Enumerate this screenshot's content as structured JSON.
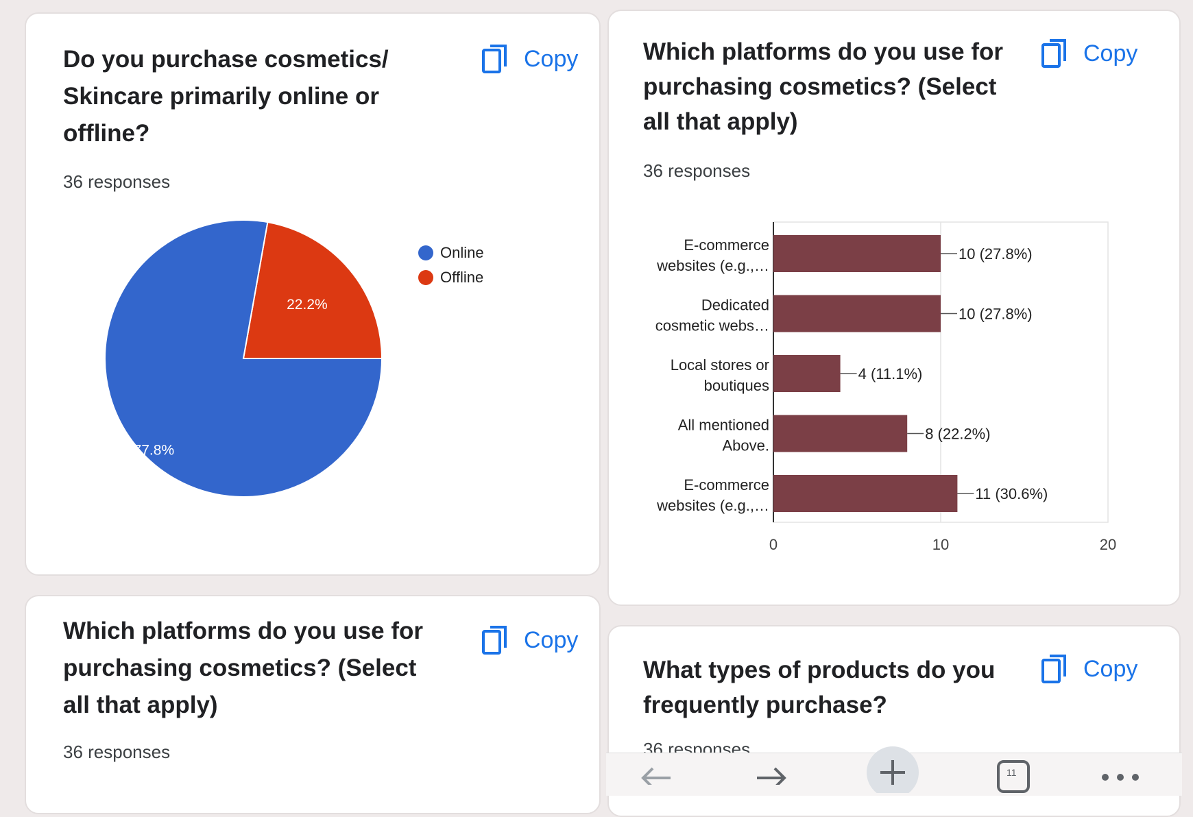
{
  "copy_label": "Copy",
  "cards": [
    {
      "question": "Do you purchase cosmetics/ Skincare primarily online or offline?",
      "title_lines": [
        "Do you purchase cosmetics/",
        "Skincare primarily online or",
        "offline?"
      ],
      "responses": "36 responses"
    },
    {
      "question": "Which platforms do you use for purchasing cosmetics? (Select all that apply)",
      "title_lines": [
        "Which platforms do you use for",
        "purchasing cosmetics? (Select",
        "all that apply)"
      ],
      "responses": "36 responses"
    },
    {
      "question": "Which platforms do you use for purchasing cosmetics? (Select all that apply)",
      "title_lines": [
        "Which platforms do you use for",
        "purchasing cosmetics? (Select",
        "all that apply)"
      ],
      "responses": "36 responses"
    },
    {
      "question": "What types of products do you frequently purchase?",
      "title_lines": [
        "What types of products do you",
        "frequently purchase?"
      ],
      "responses": "36 responses"
    }
  ],
  "colors": {
    "accent": "#1a73e8",
    "online": "#3366cc",
    "offline": "#dc3912",
    "bar": "#7b3f46"
  },
  "icons": {
    "copy": "copy-icon",
    "back": "arrow-left-icon",
    "forward": "arrow-right-icon",
    "new_tab": "plus-icon",
    "tabs": "tabs-icon",
    "menu": "more-icon"
  },
  "nav": {
    "tab_count": "11"
  },
  "chart_data": [
    {
      "type": "pie",
      "categories": [
        "Online",
        "Offline"
      ],
      "values": [
        77.8,
        22.2
      ],
      "labels": [
        "77.8%",
        "22.2%"
      ],
      "colors": [
        "#3366cc",
        "#dc3912"
      ],
      "legend_position": "right"
    },
    {
      "type": "bar",
      "orientation": "horizontal",
      "categories": [
        [
          "E-commerce",
          "websites (e.g.,…"
        ],
        [
          "Dedicated",
          "cosmetic webs…"
        ],
        [
          "Local stores or",
          "boutiques"
        ],
        [
          "All mentioned",
          "Above."
        ],
        [
          "E-commerce",
          "websites (e.g.,…"
        ]
      ],
      "values": [
        10,
        10,
        4,
        8,
        11
      ],
      "data_labels": [
        "10 (27.8%)",
        "10 (27.8%)",
        "4 (11.1%)",
        "8 (22.2%)",
        "11 (30.6%)"
      ],
      "xlim": [
        0,
        20
      ],
      "xticks": [
        "0",
        "10",
        "20"
      ],
      "color": "#7b3f46"
    }
  ]
}
